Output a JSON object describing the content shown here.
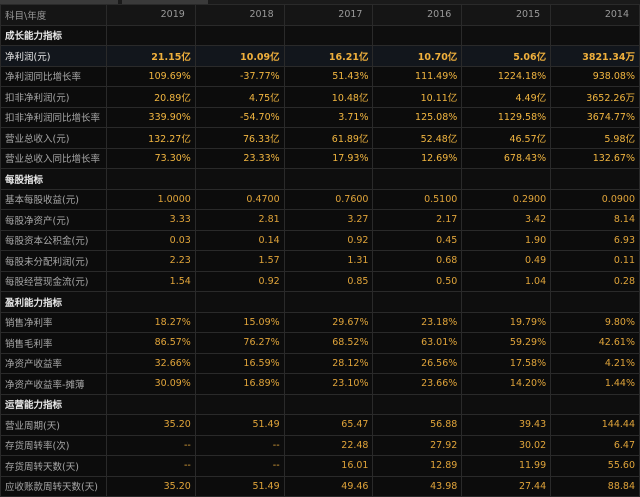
{
  "header": {
    "first": "科目\\年度",
    "years": [
      "2019",
      "2018",
      "2017",
      "2016",
      "2015",
      "2014"
    ]
  },
  "sections": [
    {
      "title": "成长能力指标",
      "rows": [
        {
          "label": "净利润(元)",
          "values": [
            "21.15亿",
            "10.09亿",
            "16.21亿",
            "10.70亿",
            "5.06亿",
            "3821.34万"
          ],
          "highlight": true
        },
        {
          "label": "净利润同比增长率",
          "values": [
            "109.69%",
            "-37.77%",
            "51.43%",
            "111.49%",
            "1224.18%",
            "938.08%"
          ]
        },
        {
          "label": "扣非净利润(元)",
          "values": [
            "20.89亿",
            "4.75亿",
            "10.48亿",
            "10.11亿",
            "4.49亿",
            "3652.26万"
          ]
        },
        {
          "label": "扣非净利润同比增长率",
          "values": [
            "339.90%",
            "-54.70%",
            "3.71%",
            "125.08%",
            "1129.58%",
            "3674.77%"
          ]
        },
        {
          "label": "营业总收入(元)",
          "values": [
            "132.27亿",
            "76.33亿",
            "61.89亿",
            "52.48亿",
            "46.57亿",
            "5.98亿"
          ]
        },
        {
          "label": "营业总收入同比增长率",
          "values": [
            "73.30%",
            "23.33%",
            "17.93%",
            "12.69%",
            "678.43%",
            "132.67%"
          ]
        }
      ]
    },
    {
      "title": "每股指标",
      "rows": [
        {
          "label": "基本每股收益(元)",
          "values": [
            "1.0000",
            "0.4700",
            "0.7600",
            "0.5100",
            "0.2900",
            "0.0900"
          ]
        },
        {
          "label": "每股净资产(元)",
          "values": [
            "3.33",
            "2.81",
            "3.27",
            "2.17",
            "3.42",
            "8.14"
          ]
        },
        {
          "label": "每股资本公积金(元)",
          "values": [
            "0.03",
            "0.14",
            "0.92",
            "0.45",
            "1.90",
            "6.93"
          ]
        },
        {
          "label": "每股未分配利润(元)",
          "values": [
            "2.23",
            "1.57",
            "1.31",
            "0.68",
            "0.49",
            "0.11"
          ]
        },
        {
          "label": "每股经营现金流(元)",
          "values": [
            "1.54",
            "0.92",
            "0.85",
            "0.50",
            "1.04",
            "0.28"
          ]
        }
      ]
    },
    {
      "title": "盈利能力指标",
      "rows": [
        {
          "label": "销售净利率",
          "values": [
            "18.27%",
            "15.09%",
            "29.67%",
            "23.18%",
            "19.79%",
            "9.80%"
          ]
        },
        {
          "label": "销售毛利率",
          "values": [
            "86.57%",
            "76.27%",
            "68.52%",
            "63.01%",
            "59.29%",
            "42.61%"
          ]
        },
        {
          "label": "净资产收益率",
          "values": [
            "32.66%",
            "16.59%",
            "28.12%",
            "26.56%",
            "17.58%",
            "4.21%"
          ]
        },
        {
          "label": "净资产收益率-摊薄",
          "values": [
            "30.09%",
            "16.89%",
            "23.10%",
            "23.66%",
            "14.20%",
            "1.44%"
          ]
        }
      ]
    },
    {
      "title": "运营能力指标",
      "rows": [
        {
          "label": "营业周期(天)",
          "values": [
            "35.20",
            "51.49",
            "65.47",
            "56.88",
            "39.43",
            "144.44"
          ]
        },
        {
          "label": "存货周转率(次)",
          "values": [
            "--",
            "--",
            "22.48",
            "27.92",
            "30.02",
            "6.47"
          ]
        },
        {
          "label": "存货周转天数(天)",
          "values": [
            "--",
            "--",
            "16.01",
            "12.89",
            "11.99",
            "55.60"
          ]
        },
        {
          "label": "应收账款周转天数(天)",
          "values": [
            "35.20",
            "51.49",
            "49.46",
            "43.98",
            "27.44",
            "88.84"
          ]
        }
      ]
    }
  ]
}
